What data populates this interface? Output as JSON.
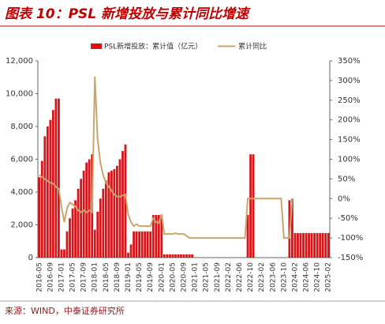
{
  "chart_data": {
    "type": "bar-line",
    "title": "图表 10：PSL 新增投放与累计同比增速",
    "source": "来源：WIND，中泰证券研究所",
    "categories": [
      "2016-05",
      null,
      null,
      null,
      "2016-09",
      null,
      null,
      null,
      "2017-01",
      null,
      null,
      null,
      "2017-05",
      null,
      null,
      null,
      "2017-09",
      null,
      null,
      null,
      "2018-01",
      null,
      null,
      null,
      "2018-05",
      null,
      null,
      null,
      "2018-09",
      null,
      null,
      null,
      "2019-01",
      null,
      null,
      null,
      "2019-05",
      null,
      null,
      null,
      "2019-09",
      null,
      null,
      null,
      "2020-01",
      null,
      null,
      null,
      "2020-05",
      null,
      null,
      null,
      "2020-09",
      null,
      null,
      null,
      "2021-01",
      null,
      null,
      null,
      "2021-05",
      null,
      null,
      null,
      "2021-09",
      null,
      null,
      null,
      "2022-02",
      null,
      null,
      null,
      "2022-06",
      null,
      null,
      null,
      "2022-10",
      null,
      null,
      null,
      "2023-02",
      null,
      null,
      null,
      "2023-06",
      null,
      null,
      null,
      "2023-10",
      null,
      null,
      null,
      "2024-02",
      null,
      null,
      null,
      "2024-06",
      null,
      null,
      null,
      "2024-10",
      null,
      null,
      null,
      "2025-02"
    ],
    "series": [
      {
        "name": "PSL新增投放：累计值（亿元）",
        "kind": "bar",
        "color": "#d7141a",
        "values": [
          4900,
          5900,
          7400,
          8000,
          8400,
          9000,
          9700,
          9700,
          500,
          500,
          1600,
          2400,
          3000,
          3500,
          4200,
          4800,
          5300,
          5800,
          6000,
          6300,
          1700,
          2800,
          3600,
          4200,
          4700,
          5200,
          5300,
          5400,
          5600,
          6000,
          6500,
          6900,
          300,
          800,
          1600,
          1600,
          1600,
          1600,
          1600,
          1600,
          1600,
          2600,
          2600,
          2600,
          2600,
          200,
          200,
          200,
          200,
          200,
          200,
          200,
          200,
          200,
          200,
          200,
          0,
          0,
          0,
          0,
          0,
          0,
          0,
          0,
          0,
          0,
          0,
          0,
          0,
          0,
          0,
          0,
          0,
          0,
          0,
          2600,
          6300,
          6300,
          0,
          0,
          0,
          0,
          0,
          0,
          0,
          0,
          0,
          0,
          0,
          0,
          3500,
          3600,
          1500,
          1500,
          1500,
          1500,
          1500,
          1500,
          1500,
          1500,
          1500,
          1500,
          1500,
          1500,
          1500
        ]
      },
      {
        "name": "累计同比",
        "kind": "line",
        "axis": "y2",
        "color": "#c9a66b",
        "values": [
          60,
          55,
          50,
          45,
          40,
          38,
          30,
          25,
          -20,
          -60,
          -25,
          -10,
          -15,
          -20,
          -30,
          -35,
          -30,
          -35,
          -30,
          -35,
          310,
          150,
          90,
          60,
          40,
          30,
          20,
          10,
          5,
          5,
          8,
          10,
          -40,
          -60,
          -70,
          -65,
          -70,
          -70,
          -70,
          -70,
          -70,
          -50,
          -60,
          -62,
          -40,
          -90,
          -90,
          -90,
          -90,
          -88,
          -90,
          -90,
          -90,
          -95,
          -100,
          -100,
          -100,
          -100,
          -100,
          -100,
          -100,
          -100,
          -100,
          -100,
          -100,
          -100,
          -100,
          -100,
          -100,
          -100,
          -100,
          -100,
          -100,
          -100,
          -100,
          0,
          0,
          0,
          0,
          0,
          0,
          0,
          0,
          0,
          0,
          0,
          0,
          0,
          -100,
          -100,
          -100,
          0,
          null,
          null,
          null,
          null,
          null,
          null,
          null,
          null,
          null,
          null,
          null,
          null,
          null
        ]
      }
    ],
    "ylim": [
      0,
      12000
    ],
    "yticks": [
      0,
      {
        "value": 2000,
        "label": "2,000"
      },
      {
        "value": 4000,
        "label": "4,000"
      },
      {
        "value": 6000,
        "label": "6,000"
      },
      {
        "value": 8000,
        "label": "8,000"
      },
      {
        "value": 10000,
        "label": "10,000"
      },
      {
        "value": 12000,
        "label": "12,000"
      }
    ],
    "y2lim": [
      -150,
      350
    ],
    "y2ticks": [
      {
        "value": -150,
        "label": "-150%"
      },
      {
        "value": -100,
        "label": "-100%"
      },
      {
        "value": -50,
        "label": "-50%"
      },
      {
        "value": 0,
        "label": "0%"
      },
      {
        "value": 50,
        "label": "50%"
      },
      {
        "value": 100,
        "label": "100%"
      },
      {
        "value": 150,
        "label": "150%"
      },
      {
        "value": 200,
        "label": "200%"
      },
      {
        "value": 250,
        "label": "250%"
      },
      {
        "value": 300,
        "label": "300%"
      },
      {
        "value": 350,
        "label": "350%"
      }
    ],
    "legend": "top"
  }
}
